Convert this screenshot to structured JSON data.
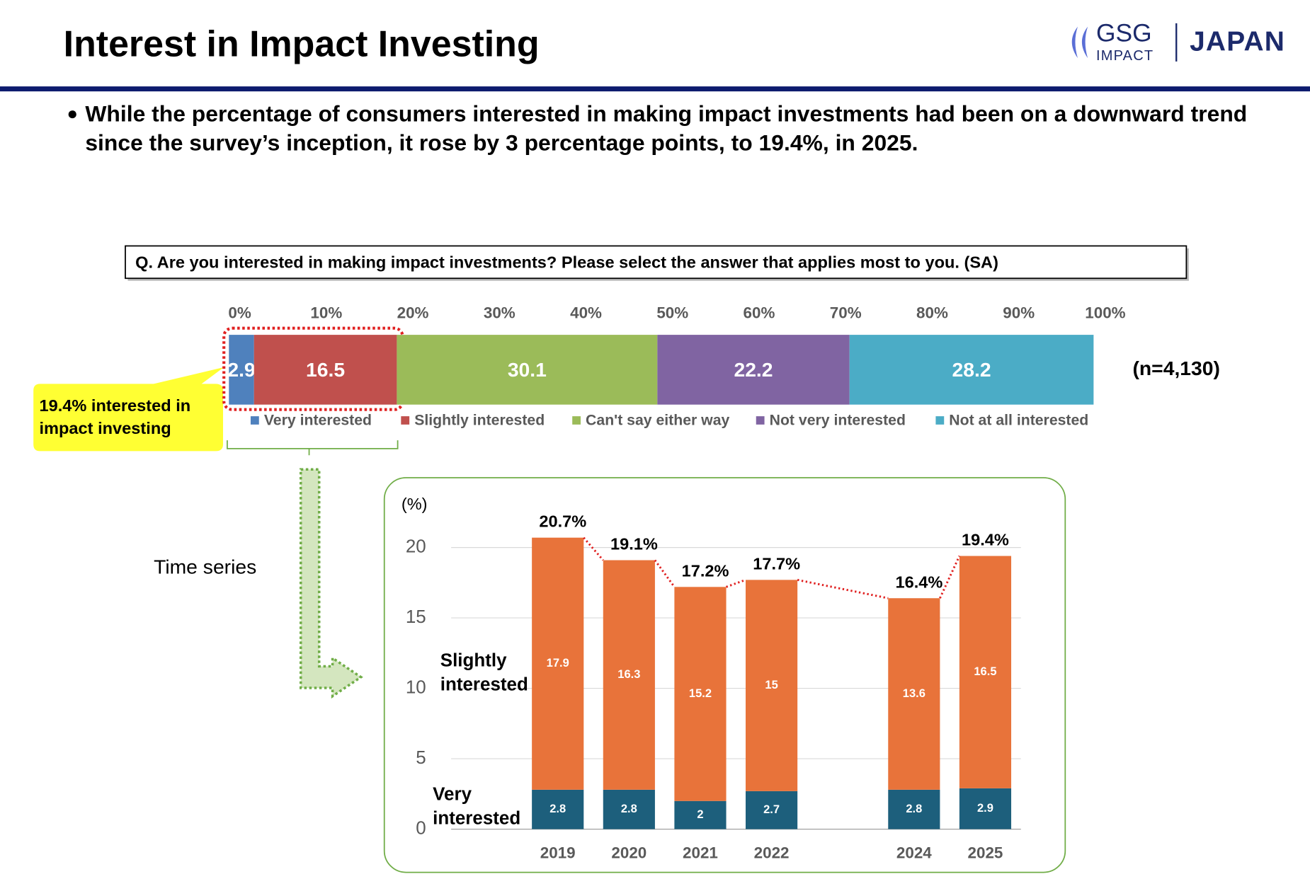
{
  "title": "Interest in Impact Investing",
  "logo": {
    "brand": "GSG",
    "sub": "IMPACT",
    "region": "JAPAN"
  },
  "bullet": "While the percentage of consumers interested in making impact investments had been on a downward trend since the survey’s inception, it rose by 3 percentage points, to 19.4%, in 2025.",
  "question": "Q. Are you interested in making impact investments? Please select the answer that applies most to you. (SA)",
  "chart_data": [
    {
      "type": "stacked_bar_h",
      "xlim": [
        0,
        100
      ],
      "xticks": [
        {
          "value": 0,
          "label": "0%"
        },
        {
          "value": 10,
          "label": "10%"
        },
        {
          "value": 20,
          "label": "20%"
        },
        {
          "value": 30,
          "label": "30%"
        },
        {
          "value": 40,
          "label": "40%"
        },
        {
          "value": 50,
          "label": "50%"
        },
        {
          "value": 60,
          "label": "60%"
        },
        {
          "value": 70,
          "label": "70%"
        },
        {
          "value": 80,
          "label": "80%"
        },
        {
          "value": 90,
          "label": "90%"
        },
        {
          "value": 100,
          "label": "100%"
        }
      ],
      "series": [
        {
          "name": "Very interested",
          "color": "#4f81bd",
          "values": [
            2.9
          ]
        },
        {
          "name": "Slightly interested",
          "color": "#c0504d",
          "values": [
            16.5
          ]
        },
        {
          "name": "Can't say either way",
          "color": "#9bbb59",
          "values": [
            30.1
          ]
        },
        {
          "name": "Not very interested",
          "color": "#8064a2",
          "values": [
            22.2
          ]
        },
        {
          "name": "Not at all interested",
          "color": "#4bacc6",
          "values": [
            28.2
          ]
        }
      ],
      "note": "(n=4,130)",
      "callout": "19.4% interested in impact investing"
    },
    {
      "type": "stacked_bar",
      "subtitle": "Time series",
      "y_label": "(%)",
      "categories": [
        "2019",
        "2020",
        "2021",
        "2022",
        null,
        "2024",
        "2025"
      ],
      "ylim": [
        0,
        20
      ],
      "yticks": [
        0,
        5,
        10,
        15,
        20
      ],
      "grid": true,
      "series": [
        {
          "name": "Very interested",
          "color": "#1d5f7c",
          "values": [
            2.8,
            2.8,
            2.0,
            2.7,
            null,
            2.8,
            2.9
          ]
        },
        {
          "name": "Slightly interested",
          "color": "#e8733a",
          "values": [
            17.9,
            16.3,
            15.2,
            15.0,
            null,
            13.6,
            16.5
          ]
        }
      ],
      "totals": {
        "values": [
          20.7,
          19.1,
          17.2,
          17.7,
          null,
          16.4,
          19.4
        ],
        "value_labels": [
          "20.7%",
          "19.1%",
          "17.2%",
          "17.7%",
          null,
          "16.4%",
          "19.4%"
        ],
        "color": "#e02020"
      }
    }
  ]
}
